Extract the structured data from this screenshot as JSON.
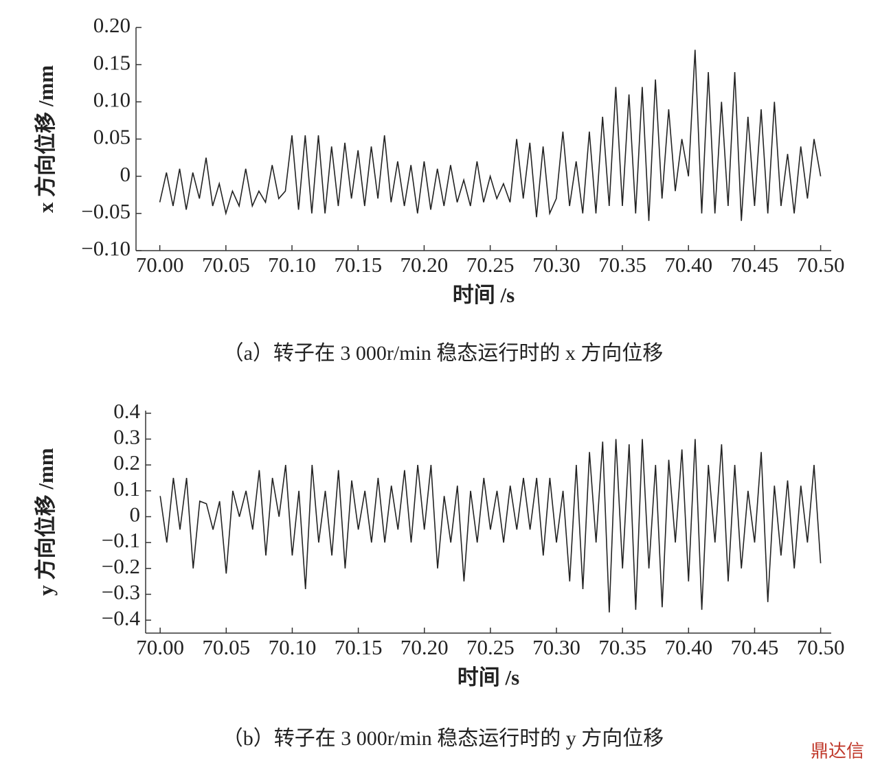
{
  "chart_data": [
    {
      "type": "line",
      "xlabel": "时间 /s",
      "ylabel": "x 方向位移 /mm",
      "caption": "（a）转子在 3 000r/min 稳态运行时的 x 方向位移",
      "xlim": [
        69.982,
        70.508
      ],
      "ylim": [
        -0.1,
        0.2
      ],
      "xticks": [
        {
          "value": 70,
          "label": "70.00"
        },
        {
          "value": 70.05,
          "label": "70.05"
        },
        {
          "value": 70.1,
          "label": "70.10"
        },
        {
          "value": 70.15,
          "label": "70.15"
        },
        {
          "value": 70.2,
          "label": "70.20"
        },
        {
          "value": 70.25,
          "label": "70.25"
        },
        {
          "value": 70.3,
          "label": "70.30"
        },
        {
          "value": 70.35,
          "label": "70.35"
        },
        {
          "value": 70.4,
          "label": "70.40"
        },
        {
          "value": 70.45,
          "label": "70.45"
        },
        {
          "value": 70.5,
          "label": "70.50"
        }
      ],
      "yticks": [
        {
          "value": 0.2,
          "label": "0.20"
        },
        {
          "value": 0.15,
          "label": "0.15"
        },
        {
          "value": 0.1,
          "label": "0.10"
        },
        {
          "value": 0.05,
          "label": "0.05"
        },
        0,
        {
          "value": -0.05,
          "label": "−0.05"
        },
        {
          "value": -0.1,
          "label": "−0.10"
        }
      ],
      "series": [
        {
          "color": "#222222",
          "x": [
            70,
            70.005,
            70.01,
            70.015,
            70.02,
            70.025,
            70.03,
            70.035,
            70.04,
            70.045,
            70.05,
            70.055,
            70.06,
            70.065,
            70.07,
            70.075,
            70.08,
            70.085,
            70.09,
            70.095,
            70.1,
            70.105,
            70.11,
            70.115,
            70.12,
            70.125,
            70.13,
            70.135,
            70.14,
            70.145,
            70.15,
            70.155,
            70.16,
            70.165,
            70.17,
            70.175,
            70.18,
            70.185,
            70.19,
            70.195,
            70.2,
            70.205,
            70.21,
            70.215,
            70.22,
            70.225,
            70.23,
            70.235,
            70.24,
            70.245,
            70.25,
            70.255,
            70.26,
            70.265,
            70.27,
            70.275,
            70.28,
            70.285,
            70.29,
            70.295,
            70.3,
            70.305,
            70.31,
            70.315,
            70.32,
            70.325,
            70.33,
            70.335,
            70.34,
            70.345,
            70.35,
            70.355,
            70.36,
            70.365,
            70.37,
            70.375,
            70.38,
            70.385,
            70.39,
            70.395,
            70.4,
            70.405,
            70.41,
            70.415,
            70.42,
            70.425,
            70.43,
            70.435,
            70.44,
            70.445,
            70.45,
            70.455,
            70.46,
            70.465,
            70.47,
            70.475,
            70.48,
            70.485,
            70.49,
            70.495,
            70.5
          ],
          "values": [
            -0.035,
            0.005,
            -0.04,
            0.01,
            -0.045,
            0.005,
            -0.03,
            0.025,
            -0.04,
            -0.01,
            -0.05,
            -0.02,
            -0.04,
            0.01,
            -0.04,
            -0.02,
            -0.035,
            0.015,
            -0.03,
            -0.02,
            0.055,
            -0.045,
            0.055,
            -0.05,
            0.055,
            -0.05,
            0.04,
            -0.04,
            0.045,
            -0.03,
            0.035,
            -0.04,
            0.04,
            -0.03,
            0.055,
            -0.035,
            0.02,
            -0.04,
            0.015,
            -0.05,
            0.02,
            -0.045,
            0.01,
            -0.04,
            0.015,
            -0.035,
            -0.005,
            -0.04,
            0.02,
            -0.035,
            0.0,
            -0.03,
            -0.01,
            -0.035,
            0.05,
            -0.03,
            0.045,
            -0.055,
            0.04,
            -0.05,
            -0.03,
            0.06,
            -0.04,
            0.02,
            -0.05,
            0.06,
            -0.05,
            0.08,
            -0.04,
            0.12,
            -0.04,
            0.11,
            -0.05,
            0.12,
            -0.06,
            0.13,
            -0.03,
            0.09,
            -0.02,
            0.05,
            0.0,
            0.17,
            -0.05,
            0.14,
            -0.05,
            0.1,
            -0.04,
            0.14,
            -0.06,
            0.08,
            -0.04,
            0.09,
            -0.05,
            0.1,
            -0.04,
            0.03,
            -0.05,
            0.04,
            -0.03,
            0.05,
            0.0
          ]
        }
      ]
    },
    {
      "type": "line",
      "xlabel": "时间 /s",
      "ylabel": "y 方向位移 /mm",
      "caption": "（b）转子在 3 000r/min 稳态运行时的 y 方向位移",
      "xlim": [
        69.989,
        70.508
      ],
      "ylim": [
        -0.45,
        0.41
      ],
      "xticks": [
        {
          "value": 70,
          "label": "70.00"
        },
        {
          "value": 70.05,
          "label": "70.05"
        },
        {
          "value": 70.1,
          "label": "70.10"
        },
        {
          "value": 70.15,
          "label": "70.15"
        },
        {
          "value": 70.2,
          "label": "70.20"
        },
        {
          "value": 70.25,
          "label": "70.25"
        },
        {
          "value": 70.3,
          "label": "70.30"
        },
        {
          "value": 70.35,
          "label": "70.35"
        },
        {
          "value": 70.4,
          "label": "70.40"
        },
        {
          "value": 70.45,
          "label": "70.45"
        },
        {
          "value": 70.5,
          "label": "70.50"
        }
      ],
      "yticks": [
        0.4,
        0.3,
        0.2,
        0.1,
        0,
        {
          "value": -0.1,
          "label": "−0.1"
        },
        {
          "value": -0.2,
          "label": "−0.2"
        },
        {
          "value": -0.3,
          "label": "−0.3"
        },
        {
          "value": -0.4,
          "label": "−0.4"
        }
      ],
      "series": [
        {
          "color": "#222222",
          "x": [
            70,
            70.005,
            70.01,
            70.015,
            70.02,
            70.025,
            70.03,
            70.035,
            70.04,
            70.045,
            70.05,
            70.055,
            70.06,
            70.065,
            70.07,
            70.075,
            70.08,
            70.085,
            70.09,
            70.095,
            70.1,
            70.105,
            70.11,
            70.115,
            70.12,
            70.125,
            70.13,
            70.135,
            70.14,
            70.145,
            70.15,
            70.155,
            70.16,
            70.165,
            70.17,
            70.175,
            70.18,
            70.185,
            70.19,
            70.195,
            70.2,
            70.205,
            70.21,
            70.215,
            70.22,
            70.225,
            70.23,
            70.235,
            70.24,
            70.245,
            70.25,
            70.255,
            70.26,
            70.265,
            70.27,
            70.275,
            70.28,
            70.285,
            70.29,
            70.295,
            70.3,
            70.305,
            70.31,
            70.315,
            70.32,
            70.325,
            70.33,
            70.335,
            70.34,
            70.345,
            70.35,
            70.355,
            70.36,
            70.365,
            70.37,
            70.375,
            70.38,
            70.385,
            70.39,
            70.395,
            70.4,
            70.405,
            70.41,
            70.415,
            70.42,
            70.425,
            70.43,
            70.435,
            70.44,
            70.445,
            70.45,
            70.455,
            70.46,
            70.465,
            70.47,
            70.475,
            70.48,
            70.485,
            70.49,
            70.495,
            70.5
          ],
          "values": [
            0.08,
            -0.1,
            0.15,
            -0.05,
            0.15,
            -0.2,
            0.06,
            0.05,
            -0.05,
            0.06,
            -0.22,
            0.1,
            0.0,
            0.1,
            -0.05,
            0.18,
            -0.15,
            0.15,
            0.0,
            0.2,
            -0.15,
            0.1,
            -0.28,
            0.2,
            -0.1,
            0.1,
            -0.15,
            0.18,
            -0.2,
            0.14,
            -0.05,
            0.1,
            -0.1,
            0.15,
            -0.1,
            0.12,
            -0.05,
            0.18,
            -0.1,
            0.2,
            -0.05,
            0.2,
            -0.2,
            0.08,
            -0.1,
            0.12,
            -0.25,
            0.1,
            -0.1,
            0.15,
            -0.05,
            0.1,
            -0.1,
            0.12,
            -0.05,
            0.15,
            -0.05,
            0.15,
            -0.15,
            0.15,
            -0.1,
            0.1,
            -0.25,
            0.2,
            -0.28,
            0.25,
            -0.1,
            0.29,
            -0.37,
            0.3,
            -0.2,
            0.28,
            -0.36,
            0.3,
            -0.2,
            0.2,
            -0.35,
            0.22,
            -0.1,
            0.26,
            -0.25,
            0.3,
            -0.36,
            0.2,
            -0.1,
            0.28,
            -0.25,
            0.2,
            -0.2,
            0.1,
            -0.1,
            0.25,
            -0.33,
            0.12,
            -0.15,
            0.14,
            -0.2,
            0.12,
            -0.1,
            0.2,
            -0.18
          ]
        }
      ]
    }
  ],
  "watermark": "鼎达信"
}
